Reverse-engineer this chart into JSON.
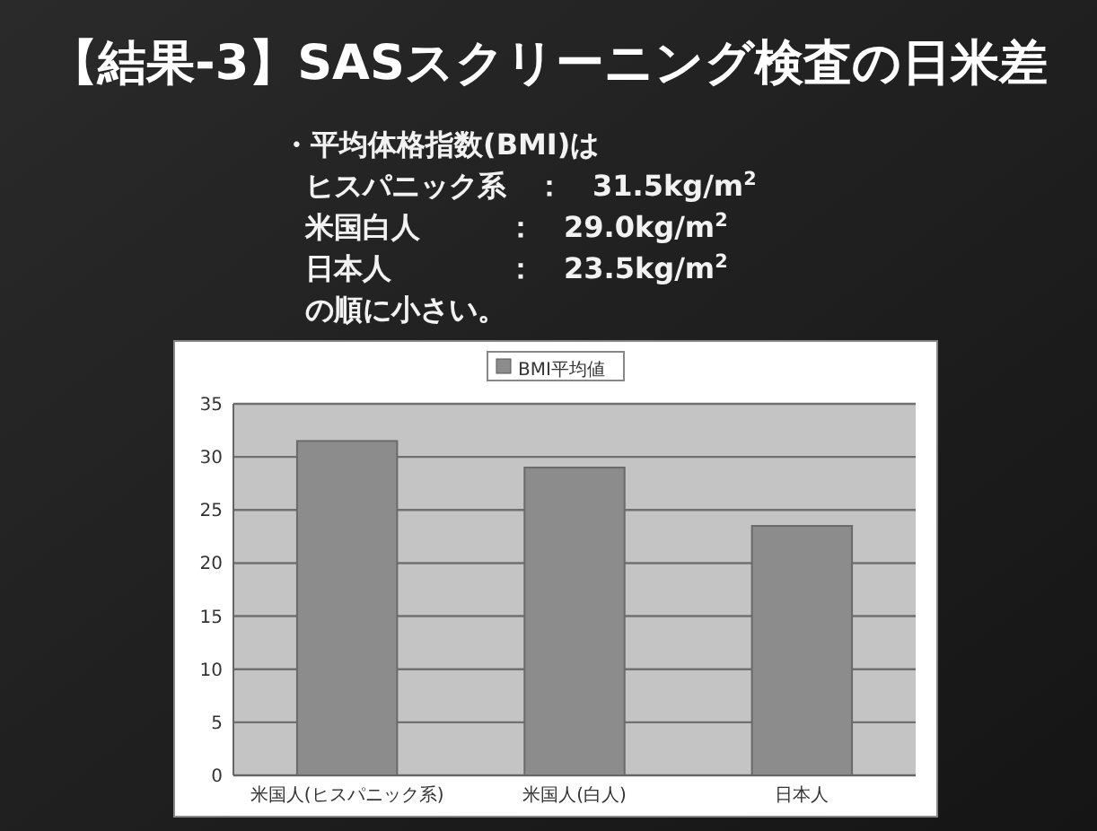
{
  "chart_data": {
    "type": "bar",
    "title": "【結果-3】SASスクリーニング検査の日米差",
    "annotations": [
      "・平均体格指数(BMI)は",
      "ヒスパニック系　：　31.5kg/m$^{2}$",
      "米国白人　　　：　29.0kg/m$^{2}$",
      "日本人　　　　：　23.5kg/m$^{2}$",
      "の順に小さい。"
    ],
    "categories": [
      "米国人(ヒスパニック系)",
      "米国人(白人)",
      "日本人"
    ],
    "series": [
      {
        "name": "BMI平均値",
        "color": "#8c8c8c",
        "values": [
          31.5,
          29.0,
          23.5
        ]
      }
    ],
    "ylim": [
      0,
      35
    ],
    "yticks": [
      0,
      5,
      10,
      15,
      20,
      25,
      30,
      35
    ],
    "grid": "y",
    "legend": "top"
  }
}
